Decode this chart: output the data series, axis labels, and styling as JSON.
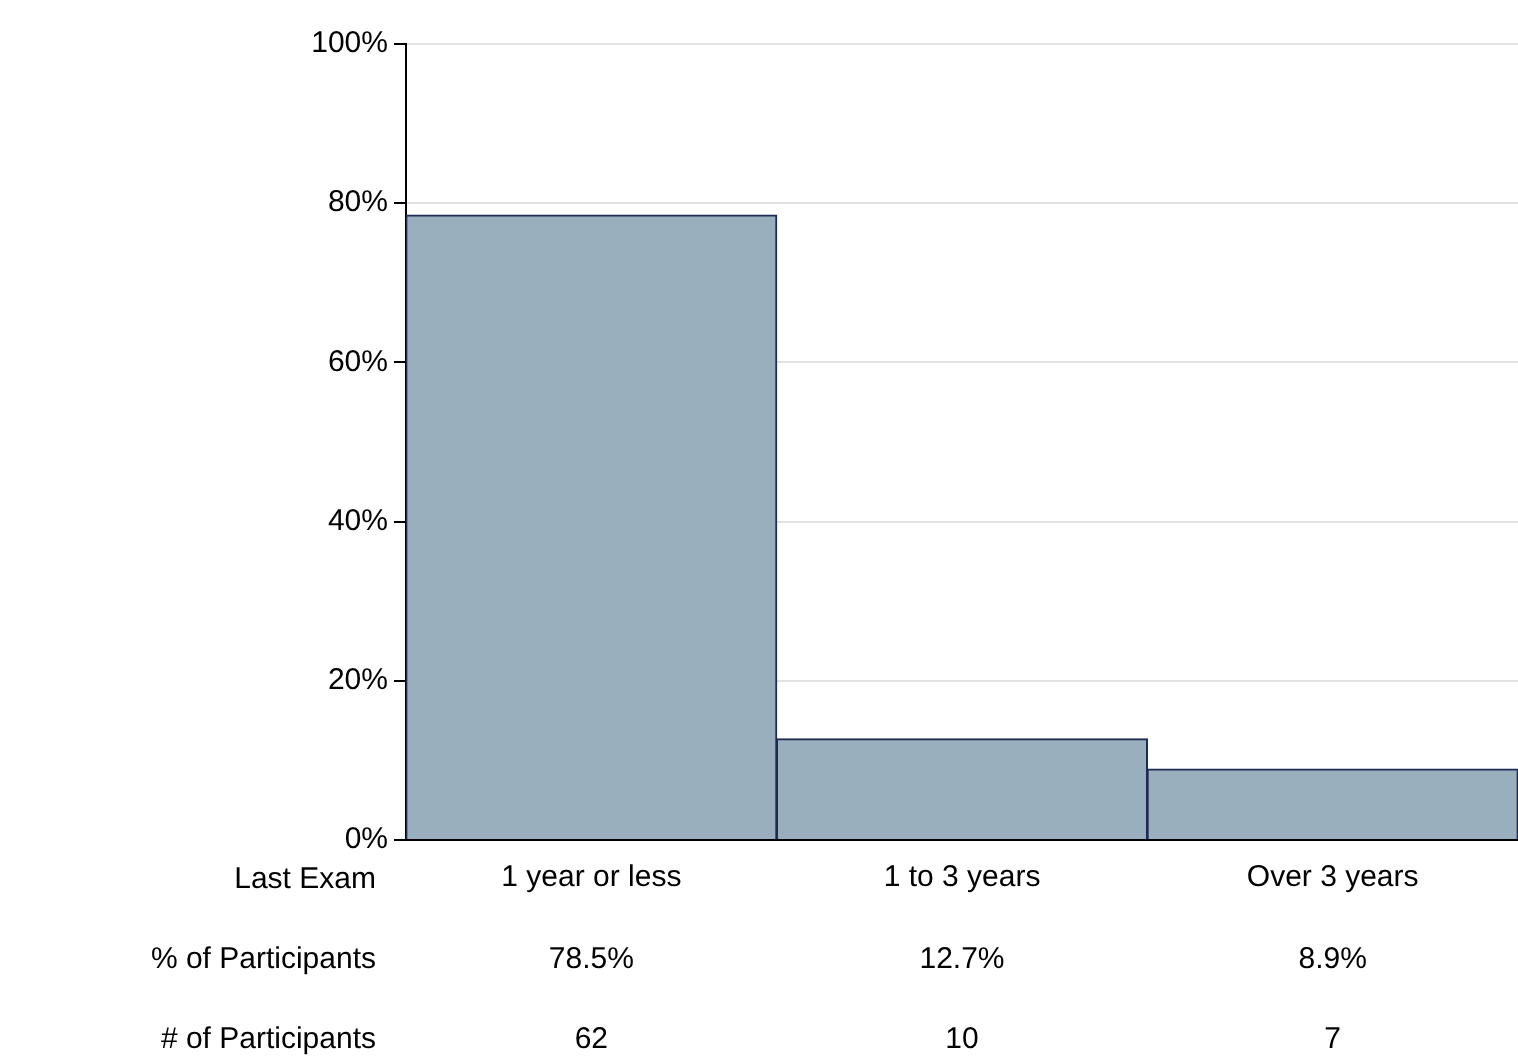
{
  "chart_data": {
    "type": "bar",
    "xlabel": "Last Exam",
    "categories": [
      "1 year or less",
      "1 to 3 years",
      "Over 3 years"
    ],
    "values": [
      78.5,
      12.7,
      8.9
    ],
    "color": "#9aafbd",
    "value_labels": [
      "78.5%",
      "12.7%",
      "8.9%"
    ],
    "ylim": [
      0,
      100
    ],
    "yticks": [
      {
        "value": 0,
        "label": "0%"
      },
      {
        "value": 20,
        "label": "20%"
      },
      {
        "value": 40,
        "label": "40%"
      },
      {
        "value": 60,
        "label": "60%"
      },
      {
        "value": 80,
        "label": "80%"
      },
      {
        "value": 100,
        "label": "100%"
      }
    ],
    "grid": "y",
    "legend": false,
    "annotations": [
      "% of Participants",
      "# of Participants",
      "62",
      "10",
      "7"
    ]
  }
}
